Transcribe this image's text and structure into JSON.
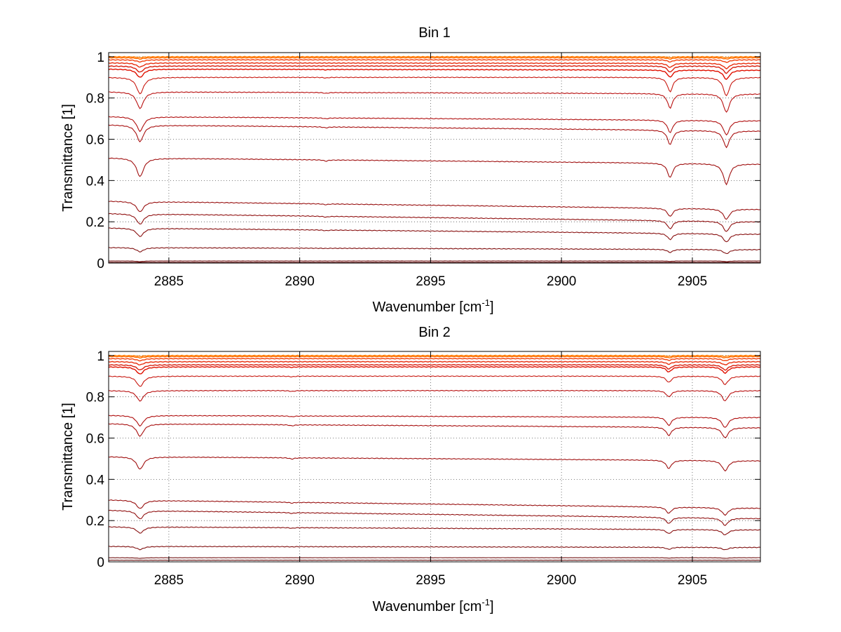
{
  "chart_data": [
    {
      "type": "line",
      "title": "Bin 1",
      "xlabel": "Wavenumber [cm",
      "xlabel_sup": "-1",
      "xlabel_end": "]",
      "ylabel": "Transmittance [1]",
      "xlim": [
        2882.7,
        2907.6
      ],
      "ylim": [
        0,
        1.02
      ],
      "xticks": [
        2885,
        2890,
        2895,
        2900,
        2905
      ],
      "yticks": [
        0,
        0.2,
        0.4,
        0.6,
        0.8,
        1
      ],
      "ytick_labels": [
        "0",
        "0.2",
        "0.4",
        "0.6",
        "0.8",
        "1"
      ],
      "xtick_labels": [
        "2885",
        "2890",
        "2895",
        "2900",
        "2905"
      ],
      "grid": true,
      "absorption_lines": [
        {
          "x": 2883.9,
          "width": 0.16
        },
        {
          "x": 2891.0,
          "width": 0.1
        },
        {
          "x": 2904.15,
          "width": 0.12
        },
        {
          "x": 2906.3,
          "width": 0.14
        }
      ],
      "series": [
        {
          "start": 1.0,
          "end": 1.0,
          "depths": [
            0.004,
            0.0,
            0.004,
            0.004
          ],
          "color": "#FF7F00"
        },
        {
          "start": 0.995,
          "end": 0.995,
          "depths": [
            0.006,
            0.0,
            0.006,
            0.006
          ],
          "color": "#FF6A00"
        },
        {
          "start": 0.985,
          "end": 0.985,
          "depths": [
            0.01,
            0.0,
            0.01,
            0.012
          ],
          "color": "#F04010"
        },
        {
          "start": 0.97,
          "end": 0.968,
          "depths": [
            0.02,
            0.0,
            0.02,
            0.025
          ],
          "color": "#E83010"
        },
        {
          "start": 0.955,
          "end": 0.955,
          "depths": [
            0.03,
            0.0,
            0.03,
            0.035
          ],
          "color": "#D82010"
        },
        {
          "start": 0.94,
          "end": 0.935,
          "depths": [
            0.04,
            0.002,
            0.035,
            0.045
          ],
          "color": "#E01000"
        },
        {
          "start": 0.9,
          "end": 0.9,
          "depths": [
            0.08,
            0.003,
            0.07,
            0.09
          ],
          "color": "#C81810"
        },
        {
          "start": 0.83,
          "end": 0.82,
          "depths": [
            0.08,
            0.004,
            0.07,
            0.09
          ],
          "color": "#B81010"
        },
        {
          "start": 0.71,
          "end": 0.69,
          "depths": [
            0.07,
            0.004,
            0.06,
            0.07
          ],
          "color": "#B01010"
        },
        {
          "start": 0.67,
          "end": 0.64,
          "depths": [
            0.08,
            0.005,
            0.07,
            0.08
          ],
          "color": "#A81010"
        },
        {
          "start": 0.51,
          "end": 0.48,
          "depths": [
            0.09,
            0.006,
            0.07,
            0.1
          ],
          "color": "#A01010"
        },
        {
          "start": 0.3,
          "end": 0.26,
          "depths": [
            0.05,
            0.004,
            0.04,
            0.05
          ],
          "color": "#981010"
        },
        {
          "start": 0.24,
          "end": 0.2,
          "depths": [
            0.05,
            0.004,
            0.04,
            0.05
          ],
          "color": "#901010"
        },
        {
          "start": 0.17,
          "end": 0.14,
          "depths": [
            0.04,
            0.003,
            0.03,
            0.04
          ],
          "color": "#881010"
        },
        {
          "start": 0.075,
          "end": 0.065,
          "depths": [
            0.02,
            0.001,
            0.015,
            0.02
          ],
          "color": "#801010"
        },
        {
          "start": 0.01,
          "end": 0.01,
          "depths": [
            0.003,
            0.0,
            0.002,
            0.003
          ],
          "color": "#701010"
        },
        {
          "start": 0.003,
          "end": 0.003,
          "depths": [
            0.0,
            0.0,
            0.0,
            0.0
          ],
          "color": "#600808"
        }
      ]
    },
    {
      "type": "line",
      "title": "Bin 2",
      "xlabel": "Wavenumber [cm",
      "xlabel_sup": "-1",
      "xlabel_end": "]",
      "ylabel": "Transmittance [1]",
      "xlim": [
        2882.7,
        2907.6
      ],
      "ylim": [
        0,
        1.02
      ],
      "xticks": [
        2885,
        2890,
        2895,
        2900,
        2905
      ],
      "yticks": [
        0,
        0.2,
        0.4,
        0.6,
        0.8,
        1
      ],
      "ytick_labels": [
        "0",
        "0.2",
        "0.4",
        "0.6",
        "0.8",
        "1"
      ],
      "xtick_labels": [
        "2885",
        "2890",
        "2895",
        "2900",
        "2905"
      ],
      "grid": true,
      "absorption_lines": [
        {
          "x": 2883.9,
          "width": 0.16
        },
        {
          "x": 2889.7,
          "width": 0.1
        },
        {
          "x": 2904.1,
          "width": 0.12
        },
        {
          "x": 2906.25,
          "width": 0.14
        }
      ],
      "series": [
        {
          "start": 1.0,
          "end": 1.0,
          "depths": [
            0.004,
            0.0,
            0.004,
            0.004
          ],
          "color": "#FF7F00"
        },
        {
          "start": 0.995,
          "end": 0.995,
          "depths": [
            0.006,
            0.0,
            0.006,
            0.006
          ],
          "color": "#FF6A00"
        },
        {
          "start": 0.985,
          "end": 0.985,
          "depths": [
            0.01,
            0.0,
            0.008,
            0.01
          ],
          "color": "#F04010"
        },
        {
          "start": 0.97,
          "end": 0.97,
          "depths": [
            0.015,
            0.0,
            0.012,
            0.015
          ],
          "color": "#E83010"
        },
        {
          "start": 0.955,
          "end": 0.955,
          "depths": [
            0.025,
            0.0,
            0.02,
            0.025
          ],
          "color": "#D82010"
        },
        {
          "start": 0.945,
          "end": 0.945,
          "depths": [
            0.035,
            0.002,
            0.025,
            0.03
          ],
          "color": "#E01000"
        },
        {
          "start": 0.9,
          "end": 0.9,
          "depths": [
            0.05,
            0.003,
            0.03,
            0.04
          ],
          "color": "#C81810"
        },
        {
          "start": 0.83,
          "end": 0.83,
          "depths": [
            0.05,
            0.004,
            0.03,
            0.05
          ],
          "color": "#B81010"
        },
        {
          "start": 0.71,
          "end": 0.7,
          "depths": [
            0.05,
            0.004,
            0.04,
            0.05
          ],
          "color": "#B01010"
        },
        {
          "start": 0.67,
          "end": 0.65,
          "depths": [
            0.06,
            0.005,
            0.04,
            0.05
          ],
          "color": "#A81010"
        },
        {
          "start": 0.51,
          "end": 0.49,
          "depths": [
            0.06,
            0.006,
            0.04,
            0.05
          ],
          "color": "#A01010"
        },
        {
          "start": 0.3,
          "end": 0.26,
          "depths": [
            0.04,
            0.004,
            0.03,
            0.035
          ],
          "color": "#981010"
        },
        {
          "start": 0.25,
          "end": 0.21,
          "depths": [
            0.04,
            0.004,
            0.03,
            0.035
          ],
          "color": "#901010"
        },
        {
          "start": 0.17,
          "end": 0.155,
          "depths": [
            0.03,
            0.003,
            0.02,
            0.025
          ],
          "color": "#881010"
        },
        {
          "start": 0.075,
          "end": 0.07,
          "depths": [
            0.015,
            0.001,
            0.01,
            0.012
          ],
          "color": "#801010"
        },
        {
          "start": 0.02,
          "end": 0.02,
          "depths": [
            0.003,
            0.0,
            0.002,
            0.003
          ],
          "color": "#701010"
        },
        {
          "start": 0.008,
          "end": 0.008,
          "depths": [
            0.0,
            0.0,
            0.0,
            0.0
          ],
          "color": "#600808"
        }
      ]
    }
  ]
}
